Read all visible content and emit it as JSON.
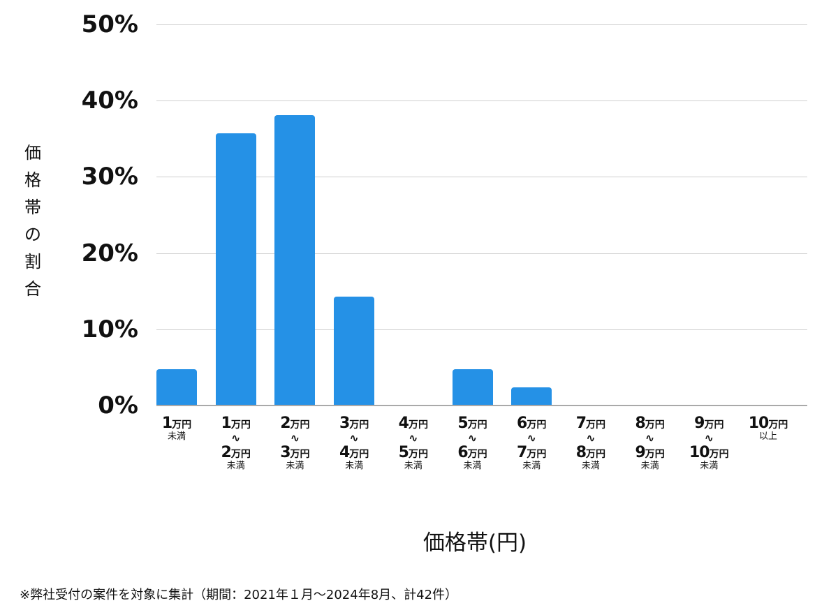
{
  "chart_data": {
    "type": "bar",
    "title": "",
    "xlabel": "価格帯(円)",
    "ylabel": "価格帯の割合",
    "ylim": [
      0,
      50
    ],
    "yticks": [
      "0%",
      "10%",
      "20%",
      "30%",
      "40%",
      "50%"
    ],
    "grid": true,
    "legend": null,
    "bar_color": "#2591e6",
    "categories": [
      "1万円未満",
      "1万円〜2万円未満",
      "2万円〜3万円未満",
      "3万円〜4万円未満",
      "4万円〜5万円未満",
      "5万円〜6万円未満",
      "6万円〜7万円未満",
      "7万円〜8万円未満",
      "8万円〜9万円未満",
      "9万円〜10万円未満",
      "10万円以上"
    ],
    "values": [
      4.8,
      35.7,
      38.1,
      14.3,
      0,
      4.8,
      2.4,
      0,
      0,
      0,
      0
    ],
    "note": "※弊社受付の案件を対象に集計（期間：2021年１月〜2024年8月、計42件）"
  },
  "axis": {
    "y_ticks": [
      {
        "label": "50%",
        "value": 50
      },
      {
        "label": "40%",
        "value": 40
      },
      {
        "label": "30%",
        "value": 30
      },
      {
        "label": "20%",
        "value": 20
      },
      {
        "label": "10%",
        "value": 10
      },
      {
        "label": "0%",
        "value": 0
      }
    ],
    "y_title_chars": [
      "価",
      "格",
      "帯",
      "の",
      "割",
      "合"
    ],
    "x_title": "価格帯(円)"
  },
  "x_labels": [
    {
      "from_num": "1",
      "from_unit": "万円",
      "range": false,
      "to_num": "",
      "to_unit": "",
      "suffix": "未満"
    },
    {
      "from_num": "1",
      "from_unit": "万円",
      "range": true,
      "tilde": "〜",
      "to_num": "2",
      "to_unit": "万円",
      "suffix": "未満"
    },
    {
      "from_num": "2",
      "from_unit": "万円",
      "range": true,
      "tilde": "〜",
      "to_num": "3",
      "to_unit": "万円",
      "suffix": "未満"
    },
    {
      "from_num": "3",
      "from_unit": "万円",
      "range": true,
      "tilde": "〜",
      "to_num": "4",
      "to_unit": "万円",
      "suffix": "未満"
    },
    {
      "from_num": "4",
      "from_unit": "万円",
      "range": true,
      "tilde": "〜",
      "to_num": "5",
      "to_unit": "万円",
      "suffix": "未満"
    },
    {
      "from_num": "5",
      "from_unit": "万円",
      "range": true,
      "tilde": "〜",
      "to_num": "6",
      "to_unit": "万円",
      "suffix": "未満"
    },
    {
      "from_num": "6",
      "from_unit": "万円",
      "range": true,
      "tilde": "〜",
      "to_num": "7",
      "to_unit": "万円",
      "suffix": "未満"
    },
    {
      "from_num": "7",
      "from_unit": "万円",
      "range": true,
      "tilde": "〜",
      "to_num": "8",
      "to_unit": "万円",
      "suffix": "未満"
    },
    {
      "from_num": "8",
      "from_unit": "万円",
      "range": true,
      "tilde": "〜",
      "to_num": "9",
      "to_unit": "万円",
      "suffix": "未満"
    },
    {
      "from_num": "9",
      "from_unit": "万円",
      "range": true,
      "tilde": "〜",
      "to_num": "10",
      "to_unit": "万円",
      "suffix": "未満"
    },
    {
      "from_num": "10",
      "from_unit": "万円",
      "range": false,
      "to_num": "",
      "to_unit": "",
      "suffix": "以上"
    }
  ],
  "footnote": "※弊社受付の案件を対象に集計（期間：2021年１月〜2024年8月、計42件）"
}
